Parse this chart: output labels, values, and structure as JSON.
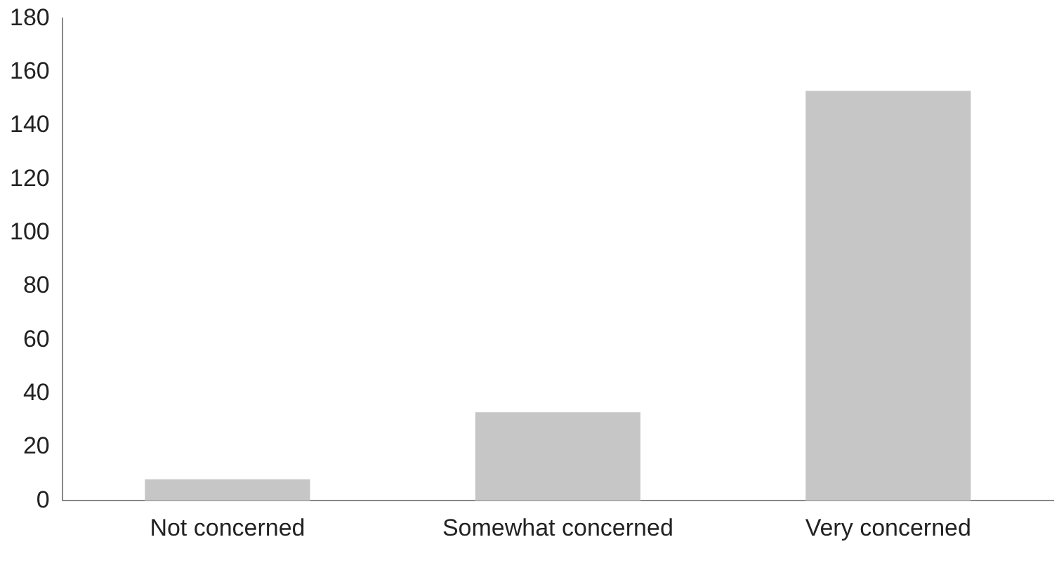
{
  "chart_data": {
    "type": "bar",
    "categories": [
      "Not concerned",
      "Somewhat concerned",
      "Very concerned"
    ],
    "values": [
      8,
      33,
      153
    ],
    "color": "#c6c6c6",
    "ylim": [
      0,
      180
    ],
    "yticks": [
      0,
      20,
      40,
      60,
      80,
      100,
      120,
      140,
      160,
      180
    ],
    "grid": false,
    "legend": false
  }
}
